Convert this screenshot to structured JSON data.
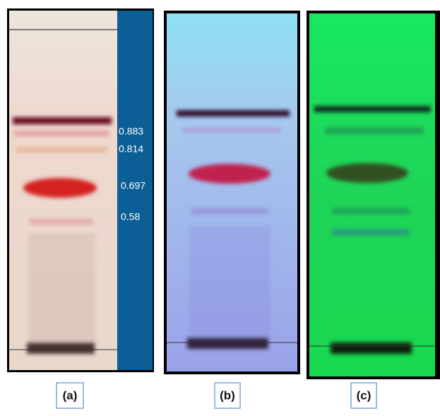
{
  "panels": [
    {
      "label": "(a)",
      "rf_values": [
        "0.883",
        "0.814",
        "0.697",
        "0.58"
      ]
    },
    {
      "label": "(b)"
    },
    {
      "label": "(c)"
    }
  ]
}
